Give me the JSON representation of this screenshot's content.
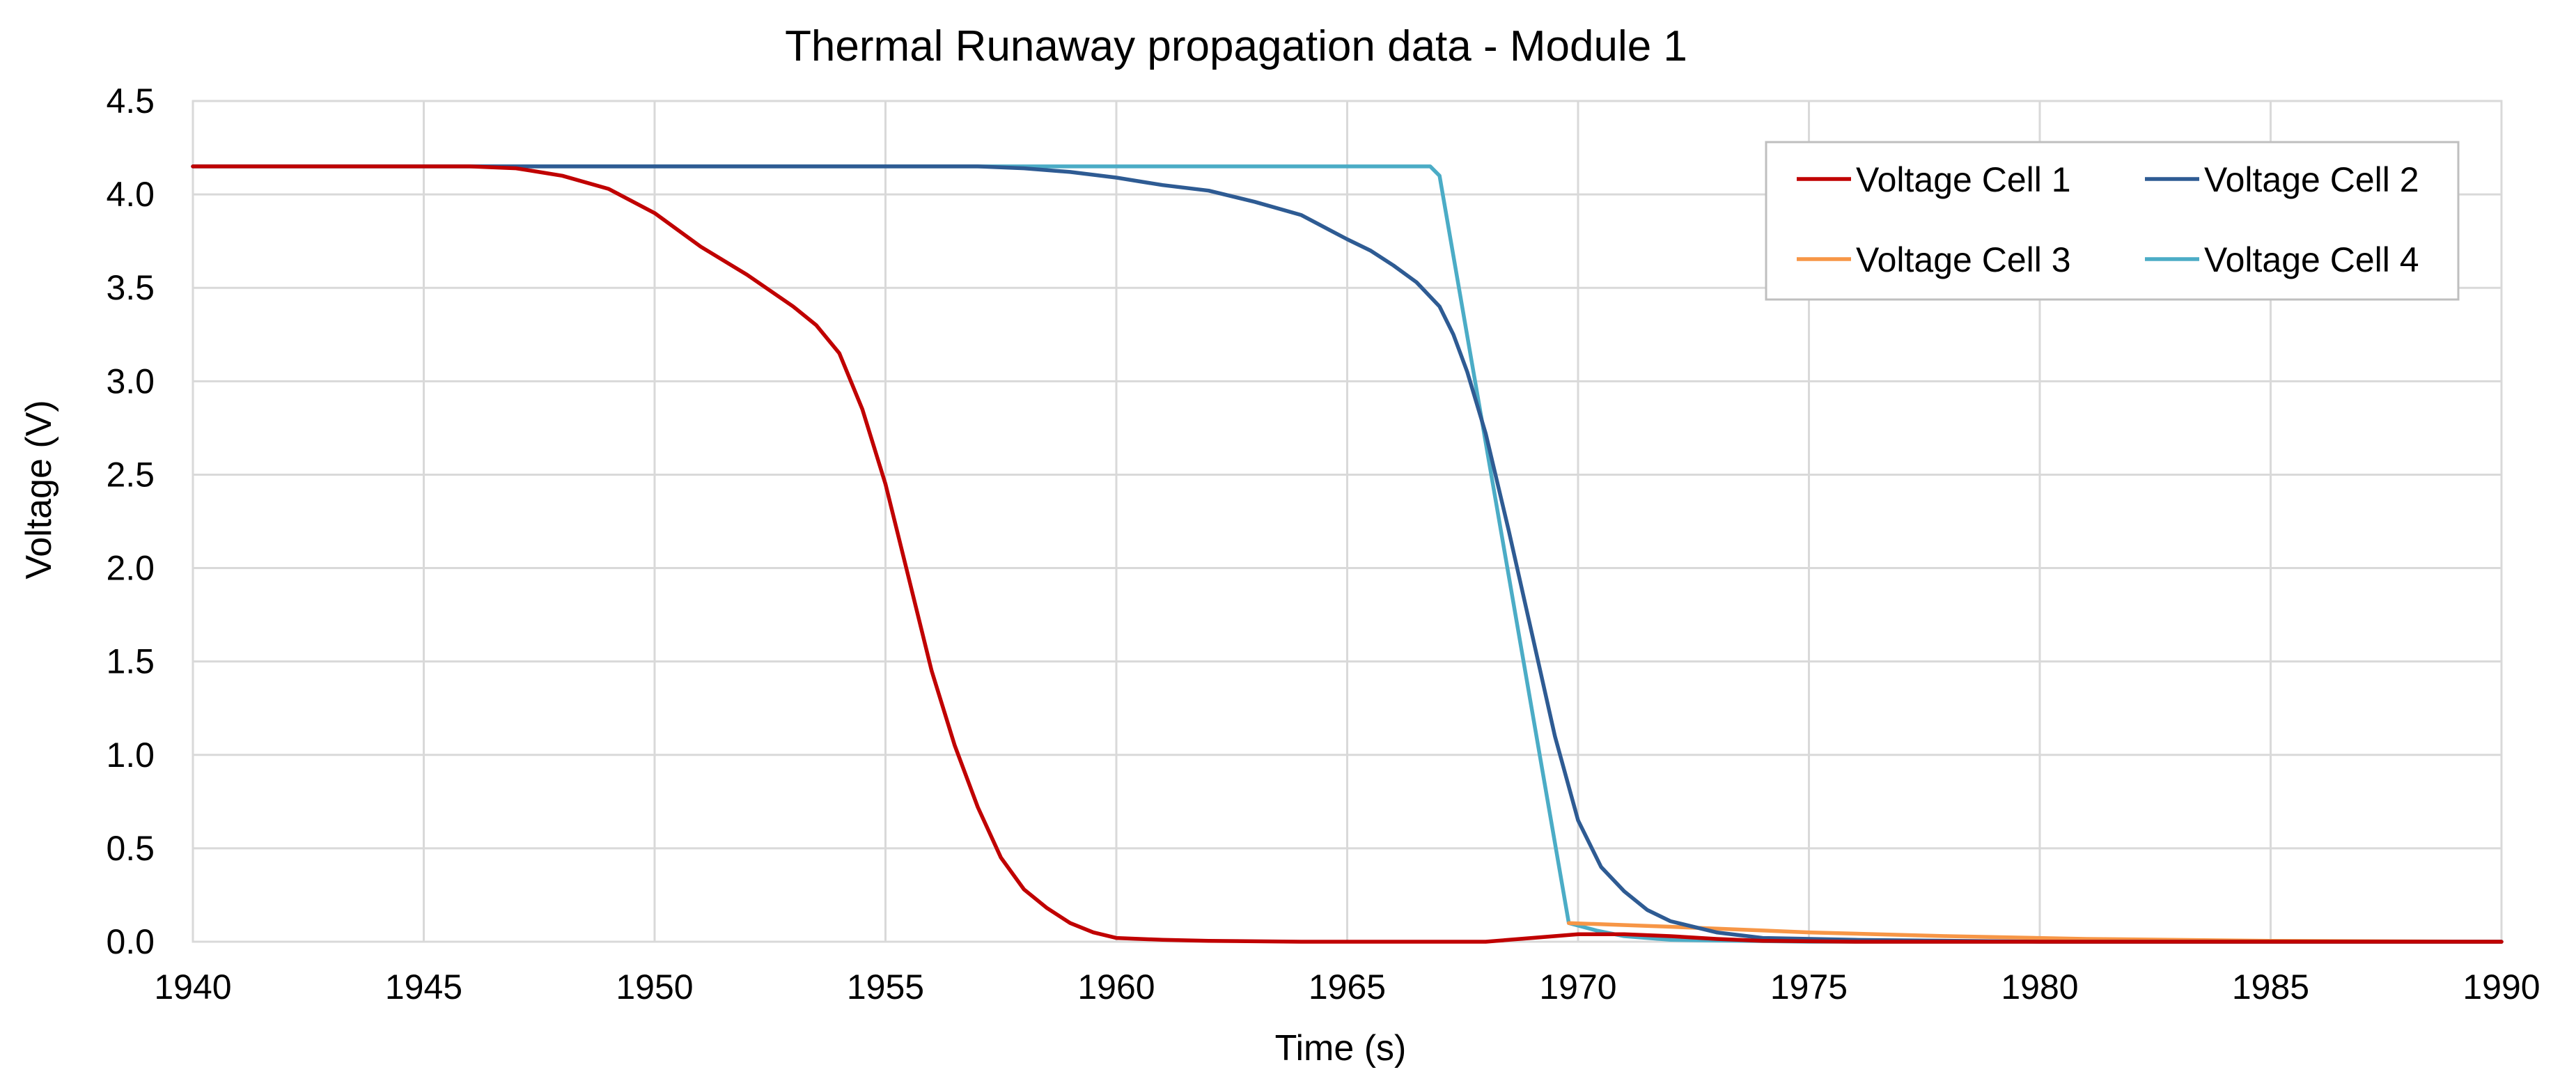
{
  "chart_data": {
    "type": "line",
    "title": "Thermal Runaway propagation data  - Module 1",
    "xlabel": "Time (s)",
    "ylabel": "Voltage (V)",
    "xlim": [
      1940,
      1990
    ],
    "ylim": [
      0.0,
      4.5
    ],
    "x_ticks": [
      1940,
      1945,
      1950,
      1955,
      1960,
      1965,
      1970,
      1975,
      1980,
      1985,
      1990
    ],
    "y_ticks": [
      0.0,
      0.5,
      1.0,
      1.5,
      2.0,
      2.5,
      3.0,
      3.5,
      4.0,
      4.5
    ],
    "x_tick_labels": [
      "1940",
      "1945",
      "1950",
      "1955",
      "1960",
      "1965",
      "1970",
      "1975",
      "1980",
      "1985",
      "1990"
    ],
    "y_tick_labels": [
      "0.0",
      "0.5",
      "1.0",
      "1.5",
      "2.0",
      "2.5",
      "3.0",
      "3.5",
      "4.0",
      "4.5"
    ],
    "grid": true,
    "legend_position": "top-right",
    "series": [
      {
        "name": "Voltage Cell 1",
        "color": "#c00000",
        "x": [
          1940,
          1946,
          1947,
          1948,
          1949,
          1950,
          1951,
          1952,
          1953,
          1953.5,
          1954,
          1954.5,
          1955,
          1955.5,
          1956,
          1956.5,
          1957,
          1957.5,
          1958,
          1958.5,
          1959,
          1959.5,
          1960,
          1961,
          1962,
          1964,
          1966,
          1968,
          1969,
          1970,
          1971,
          1972,
          1973,
          1974,
          1976,
          1980,
          1990
        ],
        "y": [
          4.15,
          4.15,
          4.14,
          4.1,
          4.03,
          3.9,
          3.72,
          3.57,
          3.4,
          3.3,
          3.15,
          2.85,
          2.45,
          1.95,
          1.45,
          1.05,
          0.72,
          0.45,
          0.28,
          0.18,
          0.1,
          0.05,
          0.02,
          0.01,
          0.005,
          0.0,
          0.0,
          0.0,
          0.02,
          0.04,
          0.04,
          0.03,
          0.015,
          0.005,
          0.0,
          0.0,
          0.0
        ]
      },
      {
        "name": "Voltage Cell 2",
        "color": "#2e5b93",
        "x": [
          1940,
          1957,
          1958,
          1959,
          1960,
          1961,
          1962,
          1963,
          1964,
          1965,
          1965.5,
          1966,
          1966.5,
          1967,
          1967.3,
          1967.6,
          1968,
          1968.5,
          1969,
          1969.5,
          1970,
          1970.5,
          1971,
          1971.5,
          1972,
          1973,
          1974,
          1976,
          1980,
          1990
        ],
        "y": [
          4.15,
          4.15,
          4.14,
          4.12,
          4.09,
          4.05,
          4.02,
          3.96,
          3.89,
          3.76,
          3.7,
          3.62,
          3.53,
          3.4,
          3.25,
          3.05,
          2.72,
          2.2,
          1.65,
          1.1,
          0.65,
          0.4,
          0.27,
          0.17,
          0.11,
          0.05,
          0.02,
          0.01,
          0.0,
          0.0
        ]
      },
      {
        "name": "Voltage Cell 3",
        "color": "#f79646",
        "x": [
          1969.8,
          1972,
          1975,
          1978,
          1981,
          1985,
          1990
        ],
        "y": [
          0.1,
          0.08,
          0.05,
          0.03,
          0.015,
          0.005,
          0.0
        ]
      },
      {
        "name": "Voltage Cell 4",
        "color": "#4bacc6",
        "x": [
          1940,
          1966.8,
          1967.0,
          1969.8,
          1970.4,
          1971,
          1972,
          1975,
          1990
        ],
        "y": [
          4.15,
          4.15,
          4.1,
          0.1,
          0.06,
          0.03,
          0.01,
          0.0,
          0.0
        ]
      }
    ]
  }
}
